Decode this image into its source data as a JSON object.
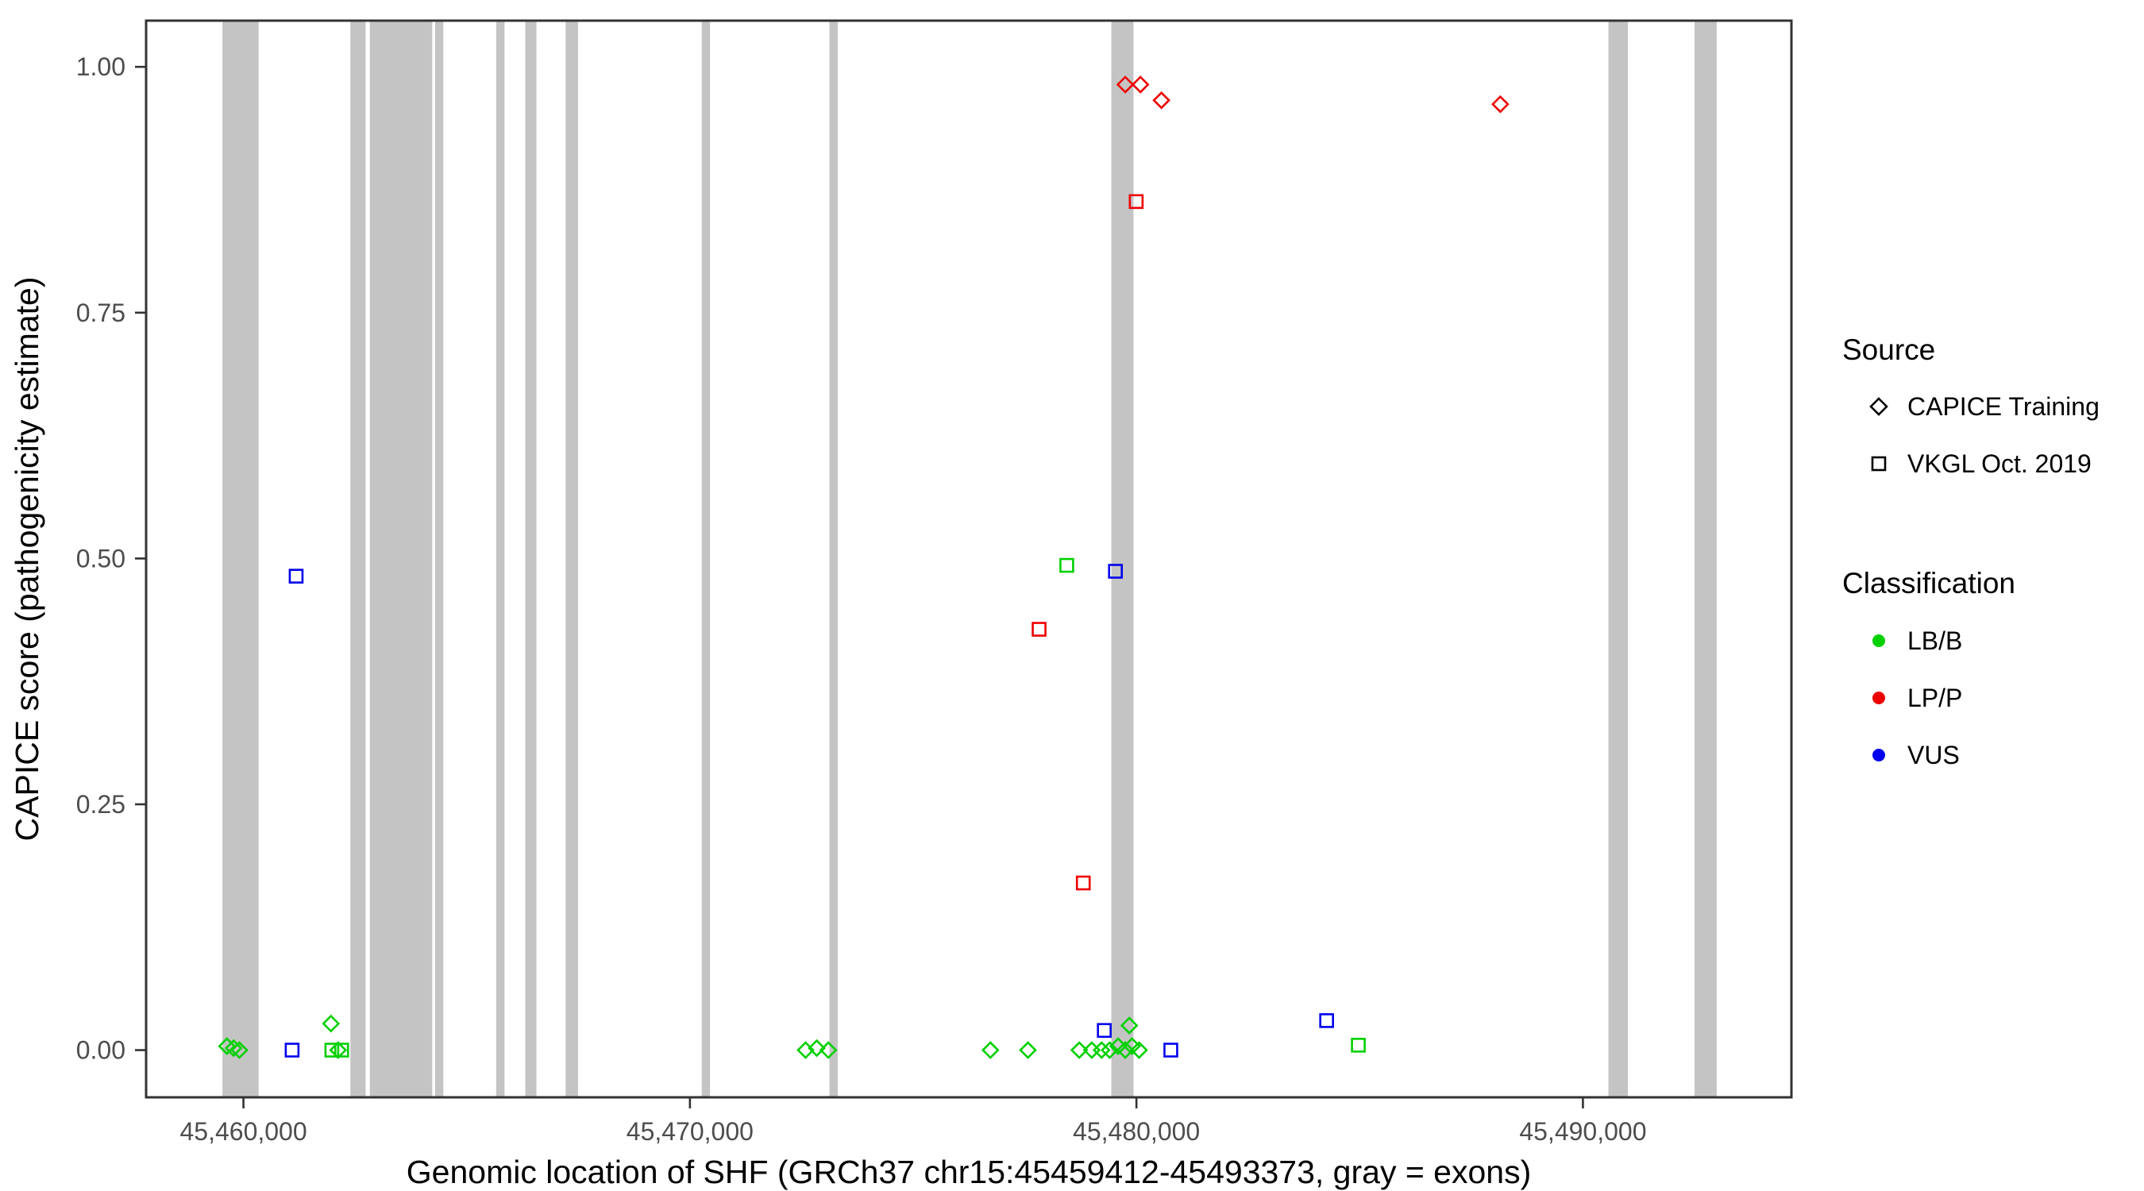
{
  "chart_data": {
    "type": "scatter",
    "title": "",
    "xlabel": "Genomic location of SHF (GRCh37 chr15:45459412-45493373, gray = exons)",
    "ylabel": "CAPICE score (pathogenicity estimate)",
    "x_domain": [
      45457820,
      45494670
    ],
    "y_domain": [
      -0.048,
      1.047
    ],
    "grid": "off",
    "x_ticks": [
      {
        "value": 45460000,
        "label": "45,460,000"
      },
      {
        "value": 45470000,
        "label": "45,470,000"
      },
      {
        "value": 45480000,
        "label": "45,480,000"
      },
      {
        "value": 45490000,
        "label": "45,490,000"
      }
    ],
    "y_ticks": [
      {
        "value": 0.0,
        "label": "0.00"
      },
      {
        "value": 0.25,
        "label": "0.25"
      },
      {
        "value": 0.5,
        "label": "0.50"
      },
      {
        "value": 0.75,
        "label": "0.75"
      },
      {
        "value": 1.0,
        "label": "1.00"
      }
    ],
    "exon_color": "#C4C4C4",
    "exons": [
      {
        "start": 45459530,
        "end": 45460340
      },
      {
        "start": 45462395,
        "end": 45462737
      },
      {
        "start": 45462830,
        "end": 45464229
      },
      {
        "start": 45464292,
        "end": 45464478
      },
      {
        "start": 45465660,
        "end": 45465847
      },
      {
        "start": 45466313,
        "end": 45466562
      },
      {
        "start": 45467215,
        "end": 45467495
      },
      {
        "start": 45470263,
        "end": 45470450
      },
      {
        "start": 45473124,
        "end": 45473311
      },
      {
        "start": 45479438,
        "end": 45479935
      },
      {
        "start": 45490571,
        "end": 45491007
      },
      {
        "start": 45492500,
        "end": 45492997
      }
    ],
    "colors": {
      "LB/B": "#00D000",
      "LP/P": "#EE0000",
      "VUS": "#0000EE"
    },
    "shapes": {
      "CAPICE Training": "diamond",
      "VKGL Oct. 2019": "square"
    },
    "legend": {
      "source": {
        "title": "Source",
        "items": [
          {
            "label": "CAPICE Training",
            "shape": "diamond"
          },
          {
            "label": "VKGL Oct. 2019",
            "shape": "square"
          }
        ]
      },
      "classification": {
        "title": "Classification",
        "items": [
          {
            "label": "LB/B"
          },
          {
            "label": "LP/P"
          },
          {
            "label": "VUS"
          }
        ]
      }
    },
    "points": [
      {
        "x": 45479750,
        "y": 0.982,
        "source": "CAPICE Training",
        "classification": "LP/P"
      },
      {
        "x": 45480090,
        "y": 0.982,
        "source": "CAPICE Training",
        "classification": "LP/P"
      },
      {
        "x": 45480560,
        "y": 0.966,
        "source": "CAPICE Training",
        "classification": "LP/P"
      },
      {
        "x": 45488150,
        "y": 0.962,
        "source": "CAPICE Training",
        "classification": "LP/P"
      },
      {
        "x": 45479995,
        "y": 0.863,
        "source": "VKGL Oct. 2019",
        "classification": "LP/P"
      },
      {
        "x": 45477820,
        "y": 0.428,
        "source": "VKGL Oct. 2019",
        "classification": "LP/P"
      },
      {
        "x": 45478810,
        "y": 0.17,
        "source": "VKGL Oct. 2019",
        "classification": "LP/P"
      },
      {
        "x": 45478440,
        "y": 0.493,
        "source": "VKGL Oct. 2019",
        "classification": "LB/B"
      },
      {
        "x": 45484970,
        "y": 0.005,
        "source": "VKGL Oct. 2019",
        "classification": "LB/B"
      },
      {
        "x": 45461980,
        "y": 0.0,
        "source": "VKGL Oct. 2019",
        "classification": "LB/B"
      },
      {
        "x": 45462200,
        "y": 0.0,
        "source": "VKGL Oct. 2019",
        "classification": "LB/B"
      },
      {
        "x": 45461180,
        "y": 0.482,
        "source": "VKGL Oct. 2019",
        "classification": "VUS"
      },
      {
        "x": 45461090,
        "y": 0.0,
        "source": "VKGL Oct. 2019",
        "classification": "VUS"
      },
      {
        "x": 45479530,
        "y": 0.487,
        "source": "VKGL Oct. 2019",
        "classification": "VUS"
      },
      {
        "x": 45479280,
        "y": 0.02,
        "source": "VKGL Oct. 2019",
        "classification": "VUS"
      },
      {
        "x": 45480770,
        "y": 0.0,
        "source": "VKGL Oct. 2019",
        "classification": "VUS"
      },
      {
        "x": 45484260,
        "y": 0.03,
        "source": "VKGL Oct. 2019",
        "classification": "VUS"
      },
      {
        "x": 45459630,
        "y": 0.004,
        "source": "CAPICE Training",
        "classification": "LB/B"
      },
      {
        "x": 45459780,
        "y": 0.002,
        "source": "CAPICE Training",
        "classification": "LB/B"
      },
      {
        "x": 45459910,
        "y": 0.0,
        "source": "CAPICE Training",
        "classification": "LB/B"
      },
      {
        "x": 45461960,
        "y": 0.027,
        "source": "CAPICE Training",
        "classification": "LB/B"
      },
      {
        "x": 45462120,
        "y": 0.0,
        "source": "CAPICE Training",
        "classification": "LB/B"
      },
      {
        "x": 45472590,
        "y": 0.0,
        "source": "CAPICE Training",
        "classification": "LB/B"
      },
      {
        "x": 45472840,
        "y": 0.002,
        "source": "CAPICE Training",
        "classification": "LB/B"
      },
      {
        "x": 45473100,
        "y": 0.0,
        "source": "CAPICE Training",
        "classification": "LB/B"
      },
      {
        "x": 45476730,
        "y": 0.0,
        "source": "CAPICE Training",
        "classification": "LB/B"
      },
      {
        "x": 45477570,
        "y": 0.0,
        "source": "CAPICE Training",
        "classification": "LB/B"
      },
      {
        "x": 45478720,
        "y": 0.0,
        "source": "CAPICE Training",
        "classification": "LB/B"
      },
      {
        "x": 45479000,
        "y": 0.0,
        "source": "CAPICE Training",
        "classification": "LB/B"
      },
      {
        "x": 45479220,
        "y": 0.0,
        "source": "CAPICE Training",
        "classification": "LB/B"
      },
      {
        "x": 45479400,
        "y": 0.0,
        "source": "CAPICE Training",
        "classification": "LB/B"
      },
      {
        "x": 45479590,
        "y": 0.004,
        "source": "CAPICE Training",
        "classification": "LB/B"
      },
      {
        "x": 45479750,
        "y": 0.0,
        "source": "CAPICE Training",
        "classification": "LB/B"
      },
      {
        "x": 45479900,
        "y": 0.004,
        "source": "CAPICE Training",
        "classification": "LB/B"
      },
      {
        "x": 45480060,
        "y": 0.0,
        "source": "CAPICE Training",
        "classification": "LB/B"
      },
      {
        "x": 45479840,
        "y": 0.025,
        "source": "CAPICE Training",
        "classification": "LB/B"
      }
    ]
  }
}
